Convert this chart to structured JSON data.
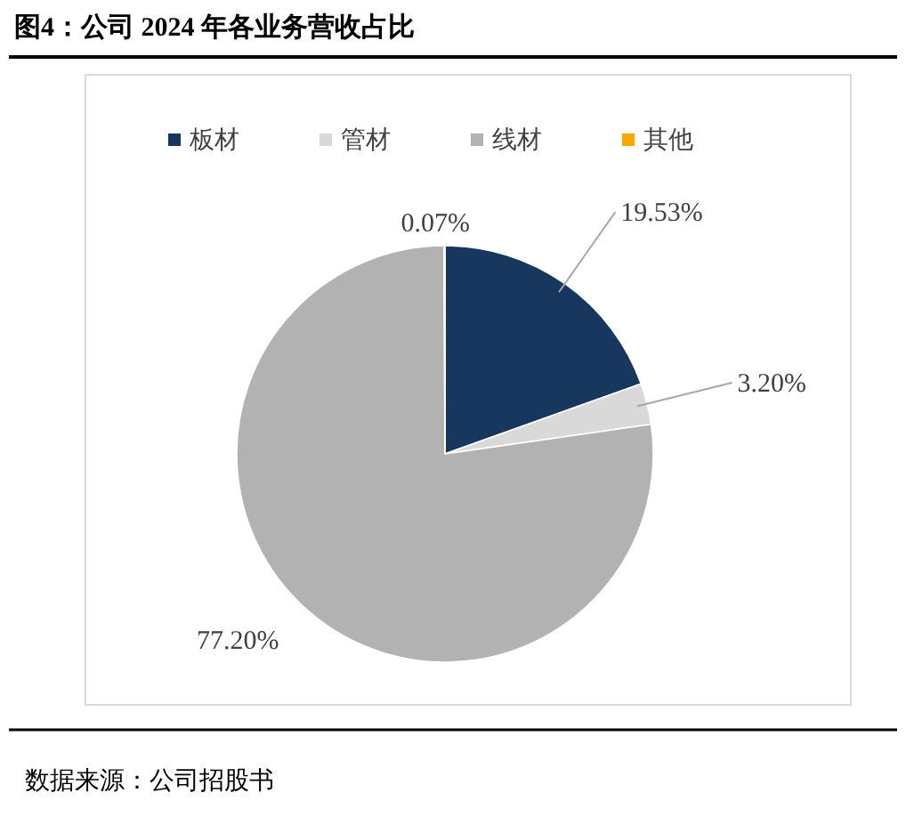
{
  "chart_data": {
    "type": "pie",
    "title": "图4：公司 2024 年各业务营收占比",
    "categories": [
      "板材",
      "管材",
      "线材",
      "其他"
    ],
    "values": [
      19.53,
      3.2,
      77.2,
      0.07
    ],
    "value_labels": [
      "19.53%",
      "3.20%",
      "77.20%",
      "0.07%"
    ],
    "colors": [
      "#17375e",
      "#d9d9d9",
      "#b2b2b2",
      "#ffa500"
    ],
    "legend": "top",
    "annotations": [
      "数据来源：公司招股书"
    ]
  }
}
